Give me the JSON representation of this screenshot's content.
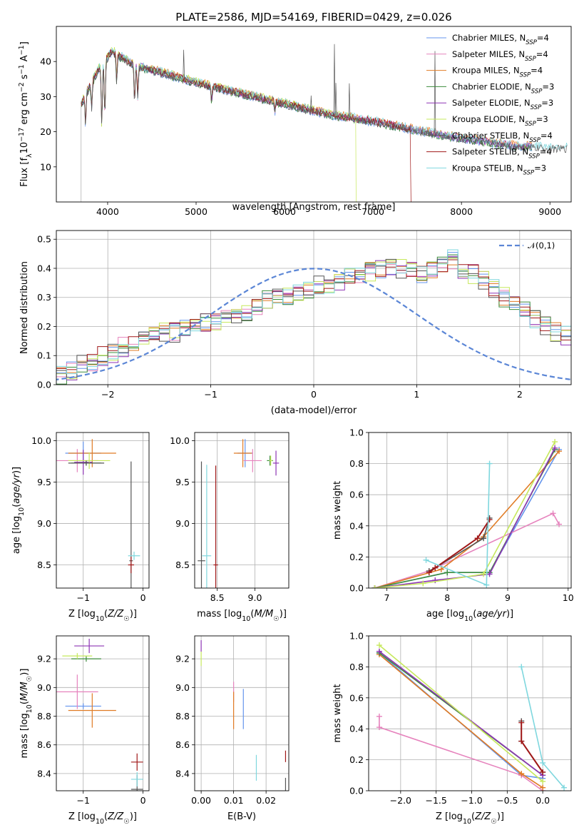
{
  "title": "PLATE=2586, MJD=54169, FIBERID=0429, z=0.026",
  "models": [
    {
      "name": "Chabrier MILES",
      "nssp": "4",
      "color": "#6495ed"
    },
    {
      "name": "Salpeter MILES",
      "nssp": "4",
      "color": "#e683bd"
    },
    {
      "name": "Kroupa MILES",
      "nssp": "4",
      "color": "#e07b24"
    },
    {
      "name": "Chabrier ELODIE",
      "nssp": "3",
      "color": "#3c8c3c"
    },
    {
      "name": "Salpeter ELODIE",
      "nssp": "3",
      "color": "#8e35b5"
    },
    {
      "name": "Kroupa ELODIE",
      "nssp": "3",
      "color": "#c6e85c"
    },
    {
      "name": "Chabrier STELIB",
      "nssp": "4",
      "color": "#555555"
    },
    {
      "name": "Salpeter STELIB",
      "nssp": "4",
      "color": "#a01818"
    },
    {
      "name": "Kroupa STELIB",
      "nssp": "3",
      "color": "#7fd7de"
    }
  ],
  "chart_data": [
    {
      "id": "spectrum",
      "type": "line",
      "title": "PLATE=2586, MJD=54169, FIBERID=0429, z=0.026",
      "xlabel": "wavelength [Angstrom, rest frame]",
      "ylabel": "Flux [f_λ 10^-17 erg cm^-2 s^-1 A^-1]",
      "xlim": [
        3420,
        9240
      ],
      "ylim": [
        0,
        50
      ],
      "xticks": [
        4000,
        5000,
        6000,
        7000,
        8000,
        9000
      ],
      "yticks": [
        10,
        20,
        30,
        40
      ],
      "legend": "upper right",
      "continuum": [
        [
          3700,
          28
        ],
        [
          3900,
          38
        ],
        [
          4050,
          43
        ],
        [
          4300,
          39
        ],
        [
          4600,
          37
        ],
        [
          5000,
          34
        ],
        [
          5500,
          31
        ],
        [
          6000,
          28
        ],
        [
          6500,
          25
        ],
        [
          7000,
          23
        ],
        [
          7400,
          21
        ],
        [
          7800,
          19
        ],
        [
          8200,
          17.5
        ],
        [
          8600,
          16
        ],
        [
          9000,
          15.5
        ]
      ],
      "cutoffs": {
        "Salpeter STELIB": 7420,
        "Chabrier STELIB": 7420,
        "Kroupa STELIB": 7420
      },
      "emission_lines": [
        [
          4861,
          44
        ],
        [
          6563,
          48
        ],
        [
          6583,
          45
        ],
        [
          6300,
          30
        ],
        [
          6730,
          38
        ],
        [
          7700,
          44
        ]
      ]
    },
    {
      "id": "residuals",
      "type": "histogram",
      "xlabel": "(data-model)/error",
      "ylabel": "Normed distribution",
      "xlim": [
        -2.5,
        2.5
      ],
      "ylim": [
        0,
        0.53
      ],
      "xticks": [
        -2,
        -1,
        0,
        1,
        2
      ],
      "yticks": [
        0.0,
        0.1,
        0.2,
        0.3,
        0.4,
        0.5
      ],
      "reference": {
        "name": "𝒩(0,1)",
        "mu": 0,
        "sigma": 1,
        "color": "#5b86d6"
      },
      "bin_width": 0.1,
      "base_values": [
        0.03,
        0.05,
        0.07,
        0.08,
        0.1,
        0.11,
        0.13,
        0.14,
        0.16,
        0.17,
        0.18,
        0.18,
        0.19,
        0.2,
        0.21,
        0.22,
        0.23,
        0.24,
        0.25,
        0.27,
        0.29,
        0.3,
        0.31,
        0.32,
        0.33,
        0.34,
        0.35,
        0.36,
        0.37,
        0.38,
        0.39,
        0.4,
        0.41,
        0.4,
        0.39,
        0.38,
        0.39,
        0.42,
        0.43,
        0.4,
        0.38,
        0.36,
        0.33,
        0.3,
        0.28,
        0.25,
        0.22,
        0.2,
        0.18,
        0.17,
        0.15,
        0.13,
        0.12,
        0.1,
        0.09,
        0.08,
        0.07,
        0.06,
        0.06,
        0.05,
        0.05,
        0.04,
        0.04,
        0.04,
        0.03,
        0.03,
        0.03,
        0.02,
        0.02,
        0.02
      ]
    },
    {
      "id": "age_vs_Z",
      "type": "scatter",
      "xlabel": "Z [log10(Z/Z☉)]",
      "ylabel": "age  [log10(age/yr)]",
      "xlim": [
        -1.45,
        0.1
      ],
      "ylim": [
        8.22,
        10.1
      ],
      "xticks": [
        -1,
        0
      ],
      "yticks": [
        8.5,
        9.0,
        9.5,
        10.0
      ],
      "points": [
        {
          "m": 0,
          "x": -1.0,
          "y": 9.85,
          "xe": 0.3,
          "ye": 0.14
        },
        {
          "m": 1,
          "x": -1.1,
          "y": 9.76,
          "xe": 0.35,
          "ye": 0.14
        },
        {
          "m": 2,
          "x": -0.85,
          "y": 9.85,
          "xe": 0.4,
          "ye": 0.17
        },
        {
          "m": 3,
          "x": -0.95,
          "y": 9.73,
          "xe": 0.25,
          "ye": 0.03
        },
        {
          "m": 4,
          "x": -1.0,
          "y": 9.74,
          "xe": 0.15,
          "ye": 0.15
        },
        {
          "m": 5,
          "x": -0.9,
          "y": 9.76,
          "xe": 0.35,
          "ye": 0.1
        },
        {
          "m": 6,
          "x": -0.95,
          "y": 9.73,
          "xe": 0.3,
          "ye": 0.03
        },
        {
          "m": 6,
          "x": -0.2,
          "y": 8.55,
          "xe": 0.03,
          "ye": 1.2
        },
        {
          "m": 7,
          "x": -0.2,
          "y": 8.5,
          "xe": 0.05,
          "ye": 0.1
        },
        {
          "m": 8,
          "x": -0.15,
          "y": 8.61,
          "xe": 0.1,
          "ye": 0.05
        }
      ]
    },
    {
      "id": "age_vs_mass",
      "type": "scatter",
      "xlabel": "mass [log10(M/M☉)]",
      "ylabel": "",
      "xlim": [
        8.2,
        9.45
      ],
      "ylim": [
        8.22,
        10.1
      ],
      "xticks": [
        8.5,
        9.0
      ],
      "yticks": [
        8.5,
        9.0,
        9.5,
        10.0
      ],
      "points": [
        {
          "m": 0,
          "x": 8.87,
          "y": 9.85,
          "xe": 0.1,
          "ye": 0.17
        },
        {
          "m": 1,
          "x": 8.97,
          "y": 9.76,
          "xe": 0.12,
          "ye": 0.14
        },
        {
          "m": 2,
          "x": 8.84,
          "y": 9.85,
          "xe": 0.12,
          "ye": 0.17
        },
        {
          "m": 3,
          "x": 9.2,
          "y": 9.76,
          "xe": 0.04,
          "ye": 0.06
        },
        {
          "m": 4,
          "x": 9.28,
          "y": 9.73,
          "xe": 0.04,
          "ye": 0.15
        },
        {
          "m": 5,
          "x": 9.21,
          "y": 9.76,
          "xe": 0.02,
          "ye": 0.06
        },
        {
          "m": 6,
          "x": 8.29,
          "y": 8.55,
          "xe": 0.05,
          "ye": 1.2
        },
        {
          "m": 7,
          "x": 8.48,
          "y": 8.5,
          "xe": 0.03,
          "ye": 1.2
        },
        {
          "m": 8,
          "x": 8.36,
          "y": 8.61,
          "xe": 0.06,
          "ye": 1.1
        }
      ]
    },
    {
      "id": "massweight_vs_age",
      "type": "line",
      "xlabel": "age  [log10(age/yr)]",
      "ylabel": "mass weight",
      "xlim": [
        6.7,
        10.05
      ],
      "ylim": [
        0,
        1.0
      ],
      "xticks": [
        7,
        8,
        9,
        10
      ],
      "yticks": [
        0.0,
        0.2,
        0.4,
        0.6,
        0.8,
        1.0
      ],
      "series": [
        {
          "m": 0,
          "x": [
            6.8,
            8.0,
            8.7,
            9.85
          ],
          "y": [
            0.0,
            0.1,
            0.1,
            0.89
          ]
        },
        {
          "m": 1,
          "x": [
            6.8,
            7.7,
            9.75,
            9.85
          ],
          "y": [
            0.0,
            0.11,
            0.48,
            0.41
          ]
        },
        {
          "m": 2,
          "x": [
            6.8,
            7.9,
            8.6,
            9.85
          ],
          "y": [
            0.0,
            0.12,
            0.33,
            0.88
          ]
        },
        {
          "m": 3,
          "x": [
            6.8,
            8.0,
            8.7,
            9.78
          ],
          "y": [
            0.0,
            0.1,
            0.1,
            0.89
          ]
        },
        {
          "m": 4,
          "x": [
            6.8,
            7.8,
            8.7,
            9.78
          ],
          "y": [
            0.0,
            0.05,
            0.09,
            0.9
          ]
        },
        {
          "m": 5,
          "x": [
            6.8,
            7.6,
            8.6,
            9.78
          ],
          "y": [
            0.0,
            0.03,
            0.09,
            0.94
          ]
        },
        {
          "m": 6,
          "x": [
            7.7,
            7.8,
            8.6,
            8.7
          ],
          "y": [
            0.11,
            0.13,
            0.32,
            0.45
          ]
        },
        {
          "m": 7,
          "x": [
            7.7,
            7.8,
            8.5,
            8.7
          ],
          "y": [
            0.1,
            0.13,
            0.32,
            0.44
          ]
        },
        {
          "m": 8,
          "x": [
            7.65,
            8.65,
            8.7
          ],
          "y": [
            0.18,
            0.02,
            0.8
          ]
        }
      ]
    },
    {
      "id": "mass_vs_Z",
      "type": "scatter",
      "xlabel": "Z [log10(Z/Z☉)]",
      "ylabel": "mass [log10(M/M☉)]",
      "xlim": [
        -1.45,
        0.1
      ],
      "ylim": [
        8.28,
        9.36
      ],
      "xticks": [
        -1,
        0
      ],
      "yticks": [
        8.4,
        8.6,
        8.8,
        9.0,
        9.2
      ],
      "points": [
        {
          "m": 0,
          "x": -1.0,
          "y": 8.87,
          "xe": 0.3,
          "ye": 0.02
        },
        {
          "m": 1,
          "x": -1.1,
          "y": 8.97,
          "xe": 0.35,
          "ye": 0.12
        },
        {
          "m": 2,
          "x": -0.85,
          "y": 8.84,
          "xe": 0.4,
          "ye": 0.12
        },
        {
          "m": 3,
          "x": -0.95,
          "y": 9.2,
          "xe": 0.25,
          "ye": 0.02
        },
        {
          "m": 4,
          "x": -0.9,
          "y": 9.29,
          "xe": 0.25,
          "ye": 0.05
        },
        {
          "m": 5,
          "x": -1.1,
          "y": 9.22,
          "xe": 0.25,
          "ye": 0.02
        },
        {
          "m": 6,
          "x": -0.1,
          "y": 8.29,
          "xe": 0.1,
          "ye": 0.1
        },
        {
          "m": 7,
          "x": -0.1,
          "y": 8.48,
          "xe": 0.1,
          "ye": 0.06
        },
        {
          "m": 8,
          "x": -0.1,
          "y": 8.36,
          "xe": 0.1,
          "ye": 0.05
        }
      ]
    },
    {
      "id": "mass_vs_EBV",
      "type": "scatter",
      "xlabel": "E(B-V)",
      "ylabel": "",
      "xlim": [
        -0.002,
        0.027
      ],
      "ylim": [
        8.28,
        9.36
      ],
      "xticks": [
        0.0,
        0.01,
        0.02
      ],
      "yticks": [
        8.4,
        8.6,
        8.8,
        9.0,
        9.2
      ],
      "points": [
        {
          "m": 0,
          "x": 0.013,
          "y": 8.85,
          "xe": 0,
          "ye": 0.14
        },
        {
          "m": 1,
          "x": 0.01,
          "y": 8.97,
          "xe": 0,
          "ye": 0.07
        },
        {
          "m": 2,
          "x": 0.01,
          "y": 8.84,
          "xe": 0,
          "ye": 0.13
        },
        {
          "m": 4,
          "x": 0.0,
          "y": 9.29,
          "xe": 0,
          "ye": 0.04
        },
        {
          "m": 5,
          "x": 0.0,
          "y": 9.2,
          "xe": 0,
          "ye": 0.05
        },
        {
          "m": 6,
          "x": 0.026,
          "y": 8.32,
          "xe": 0,
          "ye": 0.05
        },
        {
          "m": 7,
          "x": 0.026,
          "y": 8.52,
          "xe": 0,
          "ye": 0.04
        },
        {
          "m": 8,
          "x": 0.017,
          "y": 8.44,
          "xe": 0,
          "ye": 0.09
        }
      ]
    },
    {
      "id": "massweight_vs_Z",
      "type": "line",
      "xlabel": "Z [log10(Z/Z☉)]",
      "ylabel": "mass weight",
      "xlim": [
        -2.45,
        0.4
      ],
      "ylim": [
        0,
        1.0
      ],
      "xticks": [
        -2.0,
        -1.5,
        -1.0,
        -0.5,
        0.0
      ],
      "yticks": [
        0.0,
        0.2,
        0.4,
        0.6,
        0.8,
        1.0
      ],
      "series": [
        {
          "m": 0,
          "x": [
            -2.3,
            -0.3,
            0.0
          ],
          "y": [
            0.89,
            0.1,
            0.08
          ]
        },
        {
          "m": 1,
          "x": [
            -2.3,
            -2.3,
            -0.3,
            0.0
          ],
          "y": [
            0.48,
            0.41,
            0.1,
            0.0
          ]
        },
        {
          "m": 2,
          "x": [
            -2.3,
            -0.3,
            0.0
          ],
          "y": [
            0.88,
            0.11,
            0.02
          ]
        },
        {
          "m": 3,
          "x": [
            -2.3,
            0.0
          ],
          "y": [
            0.89,
            0.1
          ]
        },
        {
          "m": 4,
          "x": [
            -2.3,
            0.0
          ],
          "y": [
            0.9,
            0.1
          ]
        },
        {
          "m": 5,
          "x": [
            -2.3,
            0.0
          ],
          "y": [
            0.94,
            0.06
          ]
        },
        {
          "m": 6,
          "x": [
            -0.3,
            -0.3,
            0.0
          ],
          "y": [
            0.45,
            0.32,
            0.12
          ]
        },
        {
          "m": 7,
          "x": [
            -0.3,
            -0.3,
            0.0
          ],
          "y": [
            0.44,
            0.32,
            0.12
          ]
        },
        {
          "m": 8,
          "x": [
            -0.3,
            0.0,
            0.3
          ],
          "y": [
            0.8,
            0.18,
            0.02
          ]
        }
      ]
    }
  ]
}
